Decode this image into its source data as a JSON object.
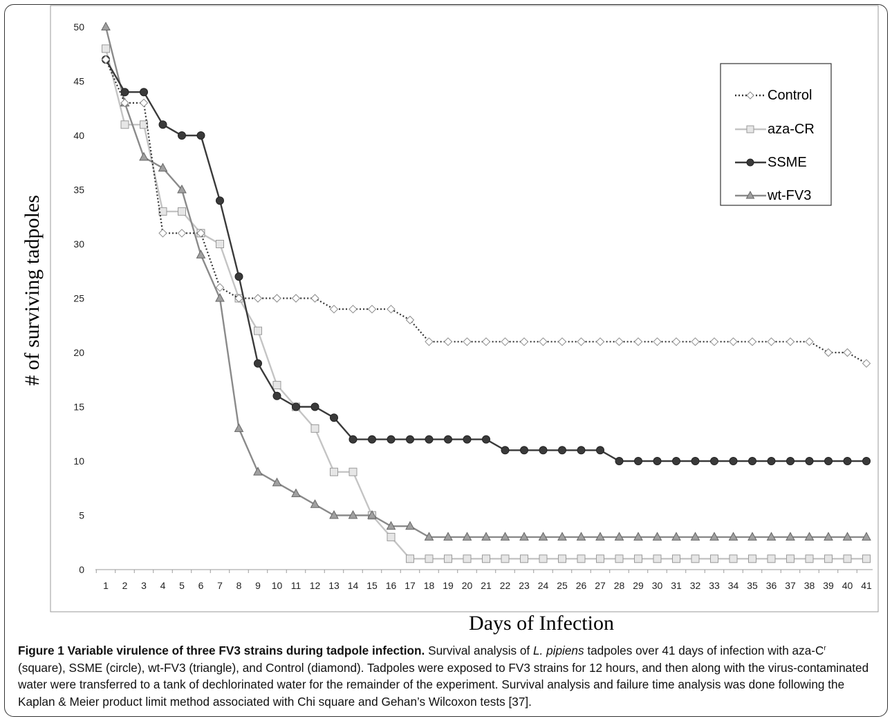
{
  "chart_data": {
    "type": "line",
    "xlabel": "Days of Infection",
    "ylabel": "# of surviving tadpoles",
    "ylim": [
      0,
      50
    ],
    "yticks": [
      "0",
      "5",
      "10",
      "15",
      "20",
      "25",
      "30",
      "35",
      "40",
      "45",
      "50"
    ],
    "categories": [
      "1",
      "2",
      "3",
      "4",
      "5",
      "6",
      "7",
      "8",
      "9",
      "10",
      "11",
      "12",
      "13",
      "14",
      "15",
      "16",
      "17",
      "18",
      "19",
      "20",
      "21",
      "22",
      "23",
      "24",
      "25",
      "26",
      "27",
      "28",
      "29",
      "30",
      "31",
      "32",
      "33",
      "34",
      "35",
      "36",
      "37",
      "38",
      "39",
      "40",
      "41"
    ],
    "grid": false,
    "legend_position": "top-right",
    "series": [
      {
        "name": "Control",
        "marker": "diamond",
        "line": "dotted",
        "color": "#333333",
        "values": [
          47,
          43,
          43,
          31,
          31,
          31,
          26,
          25,
          25,
          25,
          25,
          25,
          24,
          24,
          24,
          24,
          23,
          21,
          21,
          21,
          21,
          21,
          21,
          21,
          21,
          21,
          21,
          21,
          21,
          21,
          21,
          21,
          21,
          21,
          21,
          21,
          21,
          21,
          20,
          20,
          19
        ]
      },
      {
        "name": "aza-CR",
        "marker": "square",
        "line": "solid",
        "color": "#c4c4c4",
        "values": [
          48,
          41,
          41,
          33,
          33,
          31,
          30,
          25,
          22,
          17,
          15,
          13,
          9,
          9,
          5,
          3,
          1,
          1,
          1,
          1,
          1,
          1,
          1,
          1,
          1,
          1,
          1,
          1,
          1,
          1,
          1,
          1,
          1,
          1,
          1,
          1,
          1,
          1,
          1,
          1,
          1
        ]
      },
      {
        "name": "SSME",
        "marker": "circle",
        "line": "solid",
        "color": "#3a3a3a",
        "values": [
          47,
          44,
          44,
          41,
          40,
          40,
          34,
          27,
          19,
          16,
          15,
          15,
          14,
          12,
          12,
          12,
          12,
          12,
          12,
          12,
          12,
          11,
          11,
          11,
          11,
          11,
          11,
          10,
          10,
          10,
          10,
          10,
          10,
          10,
          10,
          10,
          10,
          10,
          10,
          10,
          10
        ]
      },
      {
        "name": "wt-FV3",
        "marker": "triangle",
        "line": "solid",
        "color": "#8a8a8a",
        "values": [
          50,
          43,
          38,
          37,
          35,
          29,
          25,
          13,
          9,
          8,
          7,
          6,
          5,
          5,
          5,
          4,
          4,
          3,
          3,
          3,
          3,
          3,
          3,
          3,
          3,
          3,
          3,
          3,
          3,
          3,
          3,
          3,
          3,
          3,
          3,
          3,
          3,
          3,
          3,
          3,
          3
        ]
      }
    ]
  },
  "caption": {
    "title": "Figure 1 Variable virulence of three FV3 strains during tadpole infection.",
    "t1": " Survival analysis of ",
    "species": "L. pipiens",
    "t2": " tadpoles over 41 days of infection with aza-C",
    "sup": "r",
    "t3": " (square), SSME (circle), wt-FV3 (triangle), and Control (diamond). Tadpoles were exposed to FV3 strains for 12 hours, and then along with the virus-contaminated water were transferred to a tank of dechlorinated water for the remainder of the experiment. Survival analysis and failure time analysis was done following the Kaplan & Meier product limit method associated with Chi square and Gehan’s Wilcoxon tests [37]."
  }
}
